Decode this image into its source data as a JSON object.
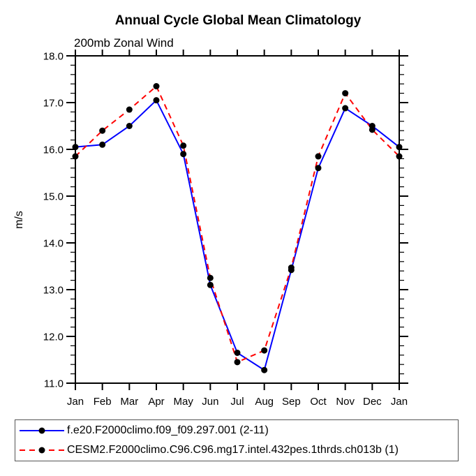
{
  "header": {
    "title": "Annual Cycle Global Mean Climatology",
    "subtitle": "200mb Zonal Wind"
  },
  "colors": {
    "series1": "#0000ff",
    "series2": "#ff0000",
    "marker": "#000000",
    "axis": "#000000",
    "legend_border": "#555555"
  },
  "chart_data": {
    "type": "line",
    "title": "Annual Cycle Global Mean Climatology",
    "subtitle": "200mb Zonal Wind",
    "xlabel": "",
    "ylabel": "m/s",
    "categories": [
      "Jan",
      "Feb",
      "Mar",
      "Apr",
      "May",
      "Jun",
      "Jul",
      "Aug",
      "Sep",
      "Oct",
      "Nov",
      "Dec",
      "Jan"
    ],
    "ylim": [
      11.0,
      18.0
    ],
    "ytick_step": 1.0,
    "ytick_minor_step": 0.2,
    "grid": false,
    "legend_position": "bottom-box",
    "marker": "black-dot",
    "series": [
      {
        "name": "f.e20.F2000climo.f09_f09.297.001 (2-11)",
        "color": "#0000ff",
        "style": "solid",
        "values": [
          16.05,
          16.1,
          16.5,
          17.05,
          15.9,
          13.1,
          11.65,
          11.28,
          13.42,
          15.6,
          16.88,
          16.5,
          16.05
        ]
      },
      {
        "name": "CESM2.F2000climo.C96.C96.mg17.intel.432pes.1thrds.ch013b (1)",
        "color": "#ff0000",
        "style": "dashed",
        "values": [
          15.85,
          16.4,
          16.85,
          17.35,
          16.08,
          13.25,
          11.45,
          11.7,
          13.47,
          15.85,
          17.2,
          16.42,
          15.85
        ]
      }
    ]
  },
  "legend": {
    "items": [
      {
        "label": "f.e20.F2000climo.f09_f09.297.001 (2-11)"
      },
      {
        "label": "CESM2.F2000climo.C96.C96.mg17.intel.432pes.1thrds.ch013b (1)"
      }
    ]
  }
}
